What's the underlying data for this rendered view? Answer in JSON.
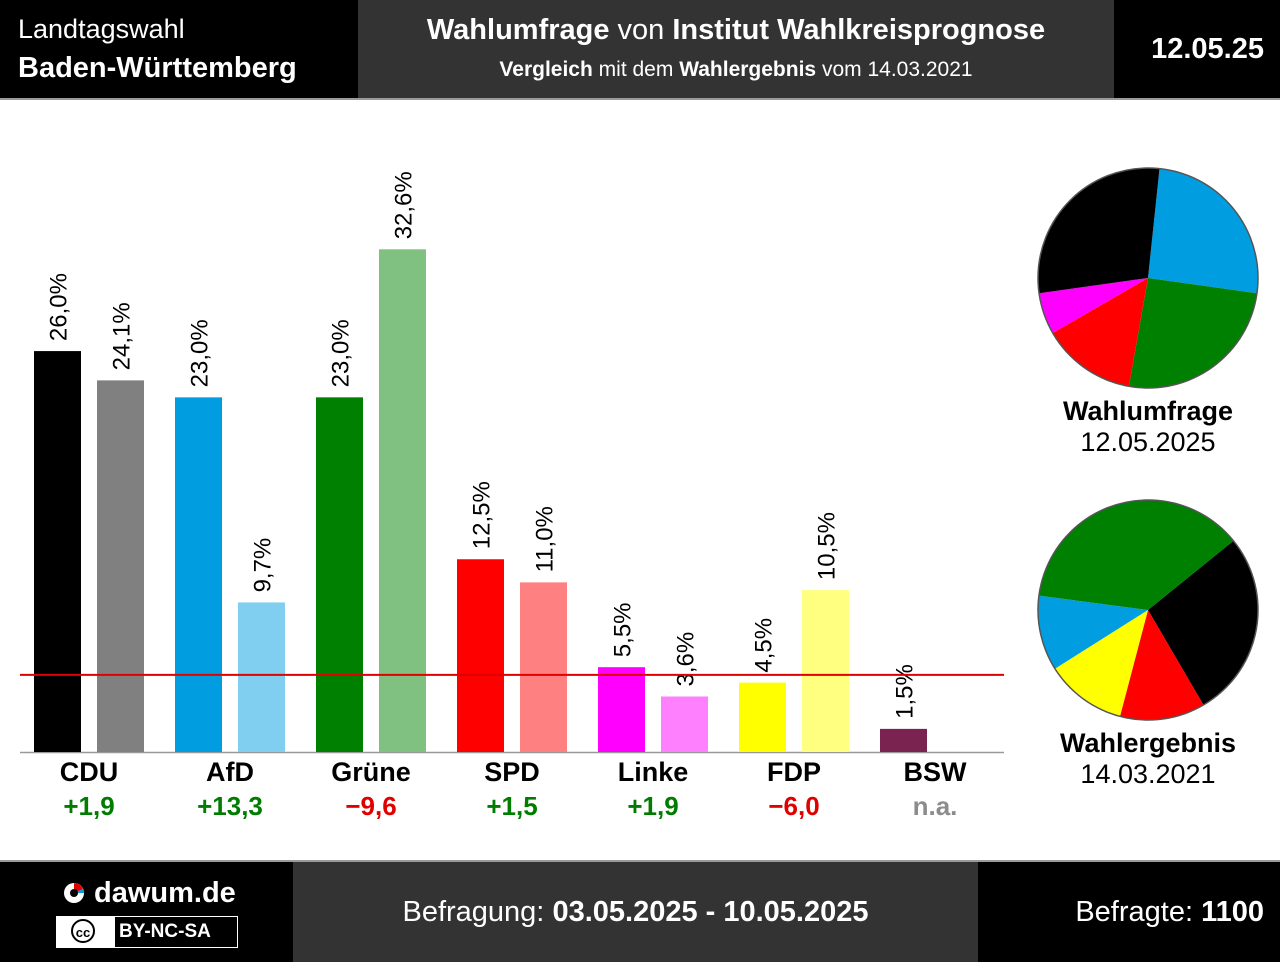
{
  "header": {
    "election_type": "Landtagswahl",
    "state": "Baden-Württemberg",
    "title_strong1": "Wahlumfrage",
    "title_mid": "von",
    "title_strong2": "Institut Wahlkreisprognose",
    "subtitle_strong1": "Vergleich",
    "subtitle_mid": "mit dem",
    "subtitle_strong2": "Wahlergebnis",
    "subtitle_end": "vom 14.03.2021",
    "date_short": "12.05.25"
  },
  "chart_data": {
    "type": "bar",
    "categories": [
      "CDU",
      "AfD",
      "Grüne",
      "SPD",
      "Linke",
      "FDP",
      "BSW"
    ],
    "series": [
      {
        "name": "Wahlumfrage",
        "values": [
          26.0,
          23.0,
          23.0,
          12.5,
          5.5,
          4.5,
          1.5
        ],
        "labels": [
          "26,0%",
          "23,0%",
          "23,0%",
          "12,5%",
          "5,5%",
          "4,5%",
          "1,5%"
        ]
      },
      {
        "name": "Wahlergebnis",
        "values": [
          24.1,
          9.7,
          32.6,
          11.0,
          3.6,
          10.5,
          null
        ],
        "labels": [
          "24,1%",
          "9,7%",
          "32,6%",
          "11,0%",
          "3,6%",
          "10,5%",
          ""
        ]
      }
    ],
    "changes": [
      "+1,9",
      "+13,3",
      "−9,6",
      "+1,5",
      "+1,9",
      "−6,0",
      "n.a."
    ],
    "change_colors": [
      "#007d00",
      "#007d00",
      "#e00000",
      "#007d00",
      "#007d00",
      "#e00000",
      "#8c8c8c"
    ],
    "colors_poll": [
      "#000000",
      "#009ee0",
      "#008000",
      "#ff0000",
      "#ff00ff",
      "#ffff00",
      "#7a2250"
    ],
    "colors_result": [
      "#808080",
      "#80cff0",
      "#80c080",
      "#ff8080",
      "#ff80ff",
      "#ffff80",
      "#bc90a8"
    ],
    "threshold": 5.0,
    "threshold_color": "#e00000",
    "ylim": [
      0,
      38
    ]
  },
  "pie_poll": {
    "name": "Wahlumfrage",
    "date": "12.05.2025",
    "slices": [
      {
        "party": "AfD",
        "value": 23.0,
        "color": "#009ee0"
      },
      {
        "party": "Grüne",
        "value": 23.0,
        "color": "#008000"
      },
      {
        "party": "SPD",
        "value": 12.5,
        "color": "#ff0000"
      },
      {
        "party": "Linke",
        "value": 5.5,
        "color": "#ff00ff"
      },
      {
        "party": "CDU",
        "value": 26.0,
        "color": "#000000"
      }
    ]
  },
  "pie_result": {
    "name": "Wahlergebnis",
    "date": "14.03.2021",
    "slices": [
      {
        "party": "CDU",
        "value": 24.1,
        "color": "#000000"
      },
      {
        "party": "SPD",
        "value": 11.0,
        "color": "#ff0000"
      },
      {
        "party": "FDP",
        "value": 10.5,
        "color": "#ffff00"
      },
      {
        "party": "AfD",
        "value": 9.7,
        "color": "#009ee0"
      },
      {
        "party": "Grüne",
        "value": 32.6,
        "color": "#008000"
      }
    ]
  },
  "footer": {
    "site": "dawum.de",
    "license": "BY-NC-SA",
    "license_cc": "cc",
    "survey_label": "Befragung:",
    "survey_period": "03.05.2025 - 10.05.2025",
    "respondents_label": "Befragte:",
    "respondents": "1100"
  }
}
